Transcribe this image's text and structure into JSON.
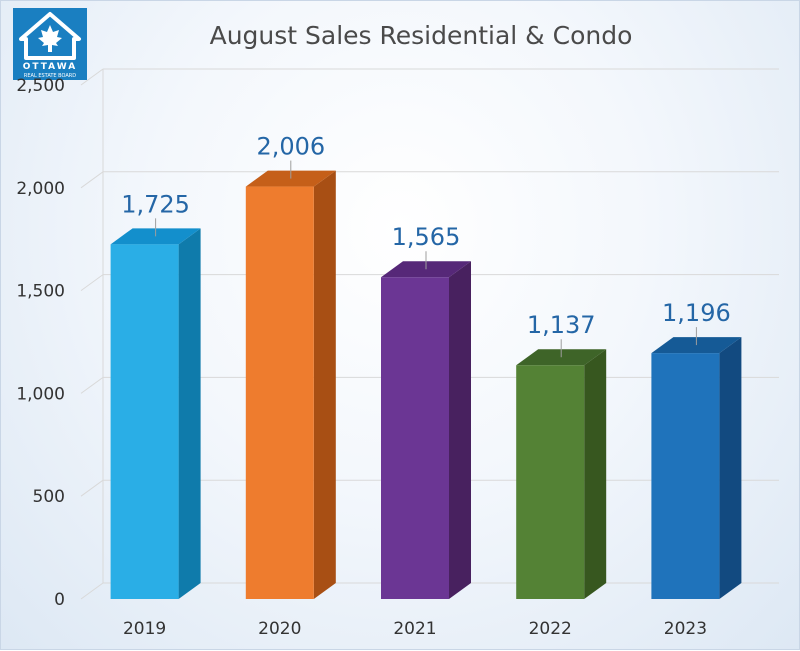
{
  "logo": {
    "top_text": "OTTAWA",
    "bottom_text": "REAL ESTATE BOARD",
    "color": "#1a7fc1"
  },
  "chart_data": {
    "type": "bar",
    "title": "August Sales Residential & Condo",
    "categories": [
      "2019",
      "2020",
      "2021",
      "2022",
      "2023"
    ],
    "values": [
      1725,
      2006,
      1565,
      1137,
      1196
    ],
    "data_labels": [
      "1,725",
      "2,006",
      "1,565",
      "1,137",
      "1,196"
    ],
    "colors": [
      "#2aaee6",
      "#ee7c2e",
      "#6b3694",
      "#548235",
      "#1f73bb"
    ],
    "side_colors": [
      "#0f7bab",
      "#a84f14",
      "#48215f",
      "#37571f",
      "#124a80"
    ],
    "top_colors": [
      "#138fcc",
      "#c55f19",
      "#562878",
      "#3e6428",
      "#155a96"
    ],
    "label_color": "#2466a6",
    "ylim": [
      0,
      2500
    ],
    "yticks": [
      0,
      500,
      1000,
      1500,
      2000,
      2500
    ],
    "ytick_labels": [
      "0",
      "500",
      "1,000",
      "1,500",
      "2,000",
      "2,500"
    ],
    "xlabel": "",
    "ylabel": "",
    "grid": true,
    "style": "3d-column"
  }
}
